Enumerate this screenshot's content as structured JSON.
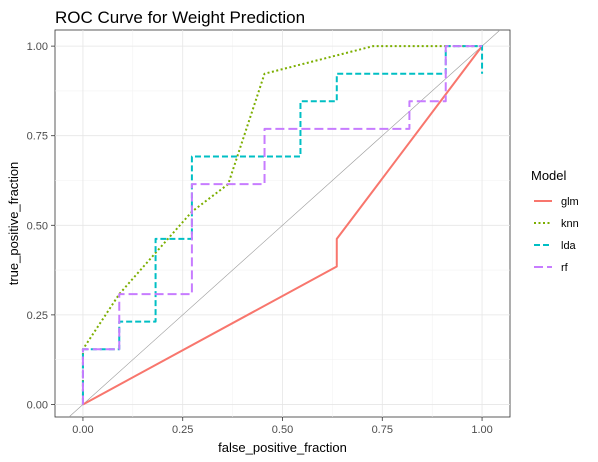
{
  "chart_data": {
    "type": "line",
    "title": "ROC Curve for Weight Prediction",
    "xlabel": "false_positive_fraction",
    "ylabel": "true_positive_fraction",
    "xlim": [
      -0.07,
      1.07
    ],
    "ylim": [
      -0.035,
      1.045
    ],
    "x_ticks": [
      0.0,
      0.25,
      0.5,
      0.75,
      1.0
    ],
    "x_tick_labels": [
      "0.00",
      "0.25",
      "0.50",
      "0.75",
      "1.00"
    ],
    "y_ticks": [
      0.0,
      0.25,
      0.5,
      0.75,
      1.0
    ],
    "y_tick_labels": [
      "0.00",
      "0.25",
      "0.50",
      "0.75",
      "1.00"
    ],
    "grid": true,
    "legend": {
      "title": "Model",
      "position": "right"
    },
    "reference_line": {
      "from": [
        0,
        0
      ],
      "to": [
        1,
        1
      ],
      "color": "#9a9a9a"
    },
    "series": [
      {
        "name": "glm",
        "color": "#F8766D",
        "dash": "solid",
        "x": [
          0,
          0.636,
          0.636,
          1.0
        ],
        "y": [
          0,
          0.385,
          0.462,
          1.0
        ]
      },
      {
        "name": "knn",
        "color": "#7CAE00",
        "dash": "dotted",
        "x": [
          0,
          0,
          0.091,
          0.182,
          0.273,
          0.364,
          0.455,
          0.727,
          1.0
        ],
        "y": [
          0,
          0.154,
          0.308,
          0.423,
          0.538,
          0.615,
          0.923,
          1.0,
          1.0
        ]
      },
      {
        "name": "lda",
        "color": "#00BFC4",
        "dash": "dashed",
        "x": [
          0,
          0,
          0.091,
          0.091,
          0.182,
          0.182,
          0.273,
          0.273,
          0.545,
          0.545,
          0.636,
          0.636,
          0.909,
          0.909,
          1.0,
          1.0
        ],
        "y": [
          0,
          0.154,
          0.154,
          0.231,
          0.231,
          0.462,
          0.462,
          0.692,
          0.692,
          0.846,
          0.846,
          0.923,
          0.923,
          1.0,
          1.0,
          0.923
        ]
      },
      {
        "name": "rf",
        "color": "#C77CFF",
        "dash": "longdash",
        "x": [
          0,
          0,
          0.091,
          0.091,
          0.273,
          0.273,
          0.455,
          0.455,
          0.818,
          0.818,
          0.909,
          0.909,
          1.0
        ],
        "y": [
          0,
          0.154,
          0.154,
          0.308,
          0.308,
          0.615,
          0.615,
          0.769,
          0.769,
          0.846,
          0.846,
          1.0,
          1.0
        ]
      }
    ]
  }
}
